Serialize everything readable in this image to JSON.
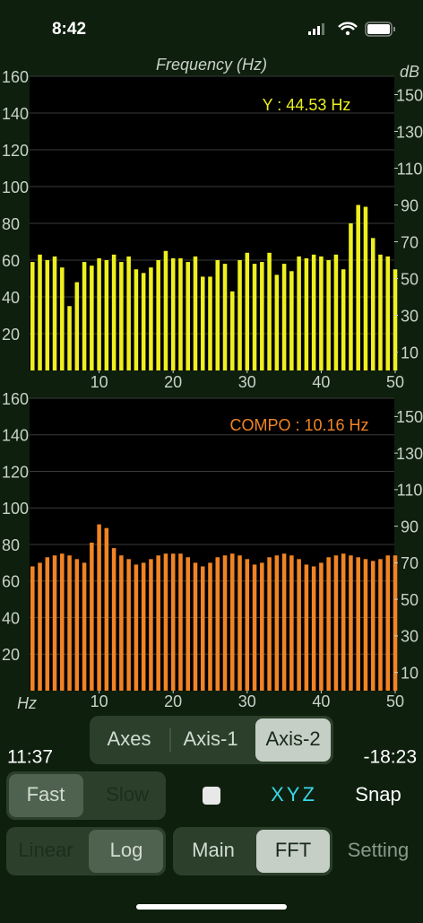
{
  "status_bar": {
    "time": "8:42"
  },
  "chart_data": [
    {
      "type": "bar",
      "title": "Frequency (Hz)",
      "y2_label": "dB",
      "annotation": "Y : 44.53 Hz",
      "color": "#eef01e",
      "x": [
        1,
        2,
        3,
        4,
        5,
        6,
        7,
        8,
        9,
        10,
        11,
        12,
        13,
        14,
        15,
        16,
        17,
        18,
        19,
        20,
        21,
        22,
        23,
        24,
        25,
        26,
        27,
        28,
        29,
        30,
        31,
        32,
        33,
        34,
        35,
        36,
        37,
        38,
        39,
        40,
        41,
        42,
        43,
        44,
        45,
        46,
        47,
        48,
        49,
        50
      ],
      "values": [
        59,
        63,
        60,
        62,
        56,
        35,
        48,
        59,
        57,
        61,
        60,
        63,
        59,
        62,
        55,
        53,
        56,
        60,
        65,
        61,
        61,
        59,
        62,
        51,
        51,
        60,
        58,
        43,
        60,
        64,
        58,
        59,
        64,
        52,
        58,
        54,
        62,
        61,
        63,
        62,
        60,
        63,
        55,
        80,
        90,
        89,
        72,
        63,
        62,
        55
      ],
      "xlim": [
        0,
        50
      ],
      "xticks": [
        10,
        20,
        30,
        40,
        50
      ],
      "ylim": [
        0,
        160
      ],
      "yticks": [
        20,
        40,
        60,
        80,
        100,
        120,
        140,
        160
      ],
      "y2lim": [
        0,
        160
      ],
      "y2ticks": [
        10,
        30,
        50,
        70,
        90,
        110,
        130,
        150
      ],
      "grid": true
    },
    {
      "type": "bar",
      "x_label": "Hz",
      "annotation": "COMPO : 10.16 Hz",
      "color": "#f08424",
      "x": [
        1,
        2,
        3,
        4,
        5,
        6,
        7,
        8,
        9,
        10,
        11,
        12,
        13,
        14,
        15,
        16,
        17,
        18,
        19,
        20,
        21,
        22,
        23,
        24,
        25,
        26,
        27,
        28,
        29,
        30,
        31,
        32,
        33,
        34,
        35,
        36,
        37,
        38,
        39,
        40,
        41,
        42,
        43,
        44,
        45,
        46,
        47,
        48,
        49,
        50
      ],
      "values": [
        68,
        70,
        73,
        74,
        75,
        74,
        72,
        70,
        81,
        91,
        89,
        78,
        74,
        72,
        69,
        70,
        72,
        74,
        75,
        75,
        75,
        73,
        70,
        68,
        70,
        73,
        74,
        75,
        74,
        72,
        69,
        70,
        73,
        74,
        75,
        74,
        72,
        69,
        68,
        70,
        73,
        74,
        75,
        74,
        73,
        72,
        71,
        72,
        74,
        74
      ],
      "xlim": [
        0,
        50
      ],
      "xticks": [
        10,
        20,
        30,
        40,
        50
      ],
      "ylim": [
        0,
        160
      ],
      "yticks": [
        20,
        40,
        60,
        80,
        100,
        120,
        140,
        160
      ],
      "y2lim": [
        0,
        160
      ],
      "y2ticks": [
        10,
        30,
        50,
        70,
        90,
        110,
        130,
        150
      ],
      "grid": true
    }
  ],
  "ui": {
    "axis_buttons": [
      "Axes",
      "Axis-1",
      "Axis-2"
    ],
    "time_elapsed": "11:37",
    "time_remaining": "-18:23",
    "speed_buttons": [
      "Fast",
      "Slow"
    ],
    "xyz": "XYZ",
    "snap": "Snap",
    "scale_buttons": [
      "Linear",
      "Log"
    ],
    "view_buttons": [
      "Main",
      "FFT"
    ],
    "setting": "Setting"
  }
}
